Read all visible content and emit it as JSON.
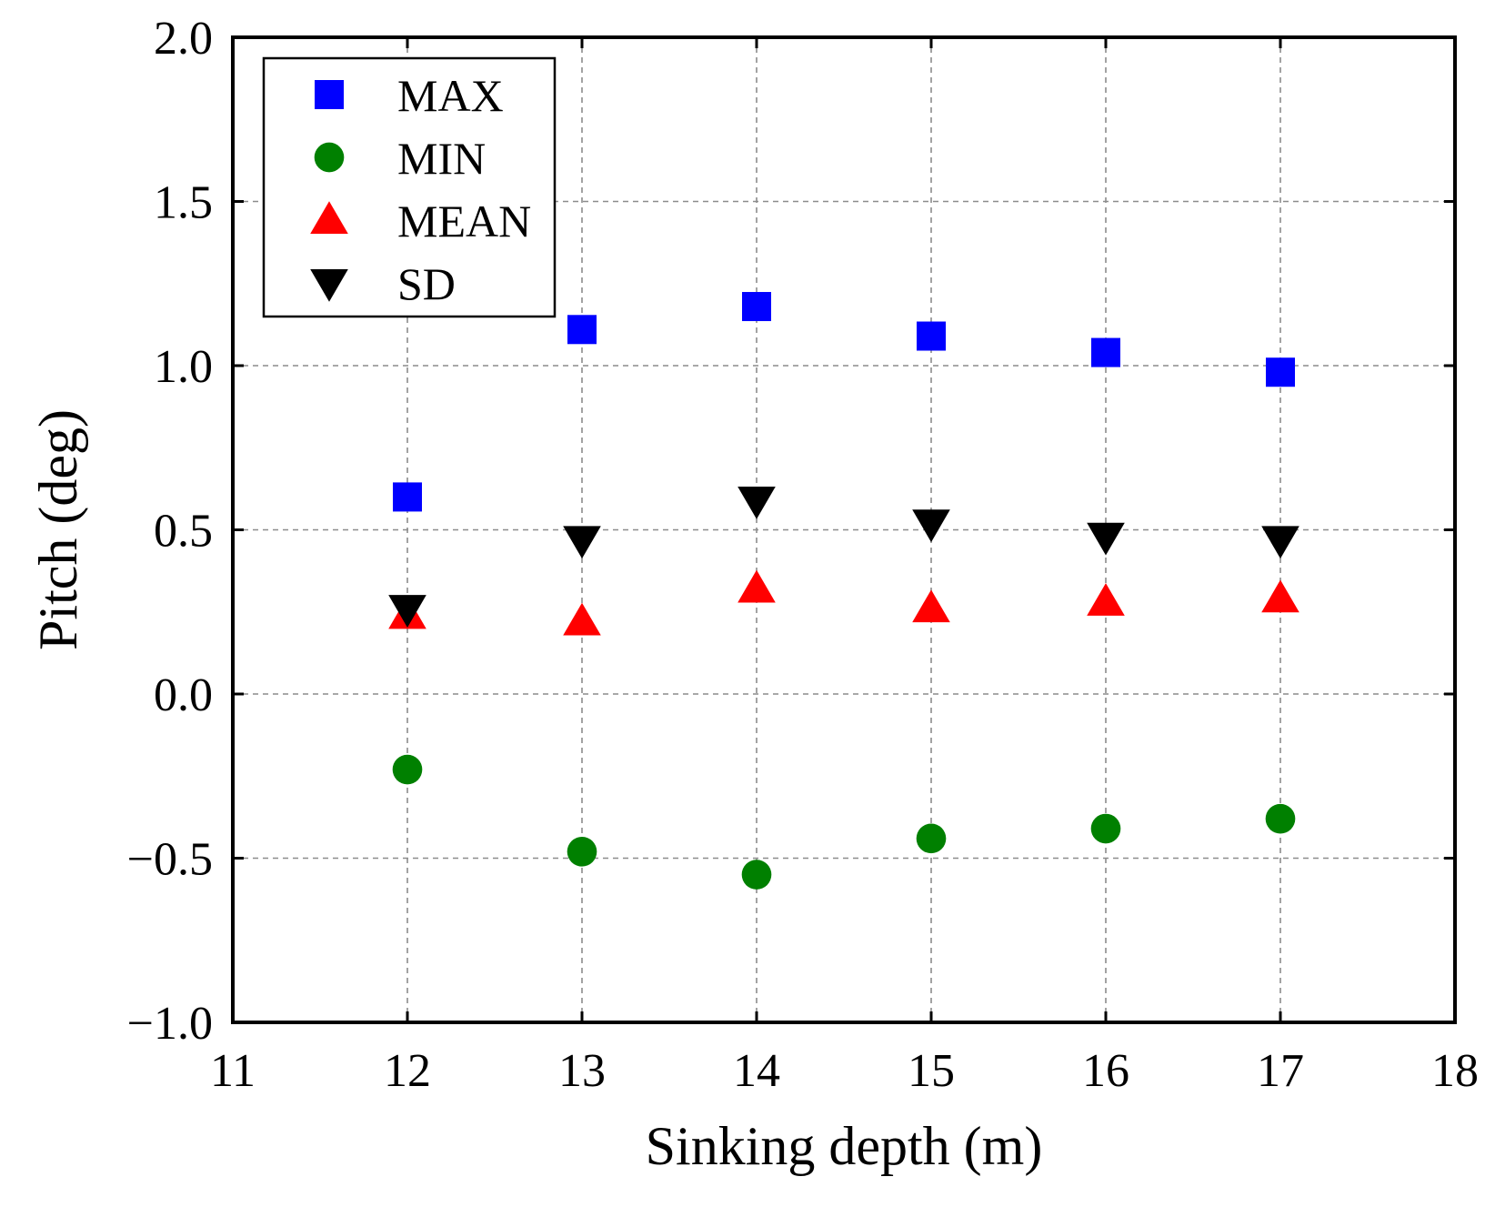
{
  "chart_data": {
    "type": "scatter",
    "title": "",
    "xlabel": "Sinking depth (m)",
    "ylabel": "Pitch (deg)",
    "xlim": [
      11,
      18
    ],
    "ylim": [
      -1.0,
      2.0
    ],
    "xticks": [
      11,
      12,
      13,
      14,
      15,
      16,
      17,
      18
    ],
    "xtick_labels": [
      "11",
      "12",
      "13",
      "14",
      "15",
      "16",
      "17",
      "18"
    ],
    "yticks": [
      -1.0,
      -0.5,
      0.0,
      0.5,
      1.0,
      1.5,
      2.0
    ],
    "ytick_labels": [
      "−1.0",
      "−0.5",
      "0.0",
      "0.5",
      "1.0",
      "1.5",
      "2.0"
    ],
    "grid": true,
    "legend_position": "top-left",
    "x": [
      12,
      13,
      14,
      15,
      16,
      17
    ],
    "series": [
      {
        "name": "MAX",
        "marker": "square",
        "color": "#0000ff",
        "values": [
          0.6,
          1.11,
          1.18,
          1.09,
          1.04,
          0.98
        ]
      },
      {
        "name": "MIN",
        "marker": "circle",
        "color": "#008000",
        "values": [
          -0.23,
          -0.48,
          -0.55,
          -0.44,
          -0.41,
          -0.38
        ]
      },
      {
        "name": "MEAN",
        "marker": "triangle-up",
        "color": "#ff0000",
        "values": [
          0.24,
          0.22,
          0.32,
          0.26,
          0.28,
          0.29
        ]
      },
      {
        "name": "SD",
        "marker": "triangle-down",
        "color": "#000000",
        "values": [
          0.26,
          0.47,
          0.59,
          0.52,
          0.48,
          0.47
        ]
      }
    ]
  }
}
